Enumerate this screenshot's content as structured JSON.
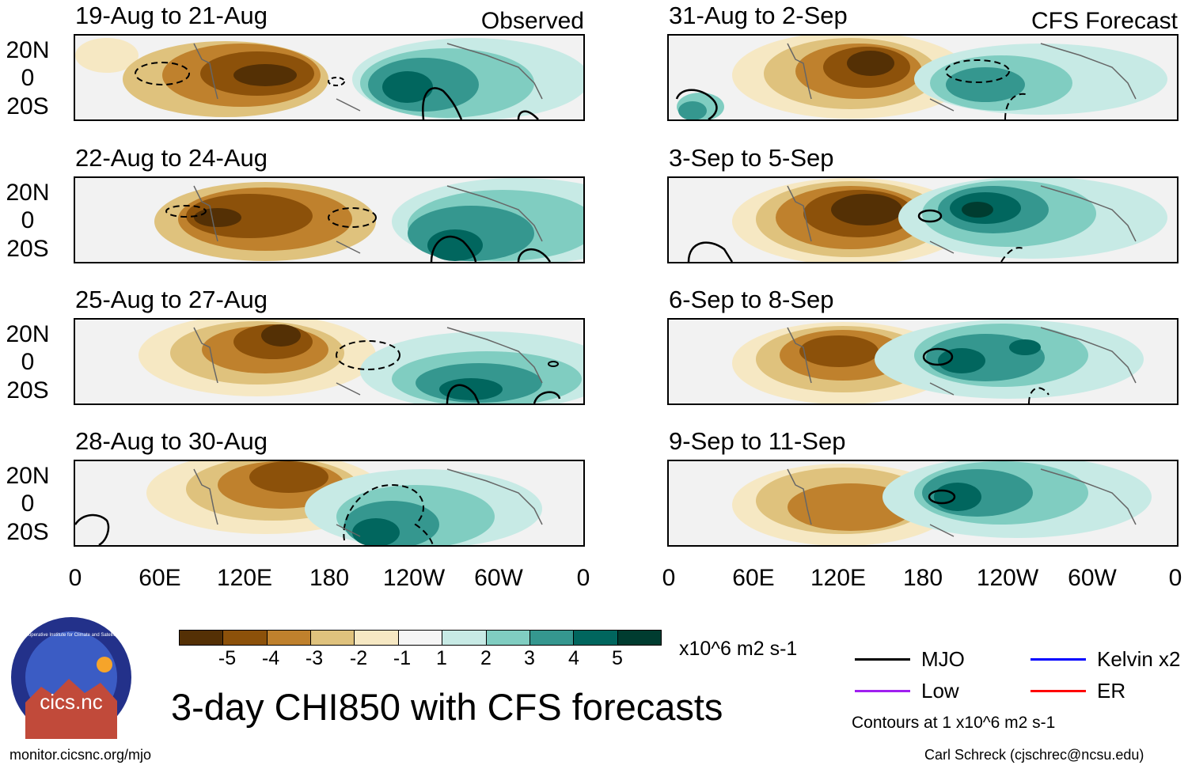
{
  "headers": {
    "observed": "Observed",
    "forecast": "CFS Forecast"
  },
  "observed_panels": [
    {
      "title": "19-Aug to 21-Aug"
    },
    {
      "title": "22-Aug to 24-Aug"
    },
    {
      "title": "25-Aug to 27-Aug"
    },
    {
      "title": "28-Aug to 30-Aug"
    }
  ],
  "forecast_panels": [
    {
      "title": "31-Aug to 2-Sep"
    },
    {
      "title": "3-Sep to 5-Sep"
    },
    {
      "title": "6-Sep to 8-Sep"
    },
    {
      "title": "9-Sep to 11-Sep"
    }
  ],
  "lat_labels": [
    "20N",
    "0",
    "20S"
  ],
  "lon_labels": [
    "0",
    "60E",
    "120E",
    "180",
    "120W",
    "60W",
    "0"
  ],
  "colorbar": {
    "labels": [
      "-5",
      "-4",
      "-3",
      "-2",
      "-1",
      "1",
      "2",
      "3",
      "4",
      "5"
    ],
    "colors": [
      "#543005",
      "#8c510a",
      "#bf812d",
      "#dfc27d",
      "#f6e8c3",
      "#f5f5f5",
      "#c7eae5",
      "#80cdc1",
      "#35978f",
      "#01665e",
      "#003c30"
    ],
    "units": "x10^6 m2 s-1"
  },
  "title": "3-day CHI850 with CFS forecasts",
  "legend": [
    {
      "label": "MJO",
      "color": "#000000"
    },
    {
      "label": "Kelvin x2",
      "color": "#0000ff"
    },
    {
      "label": "Low",
      "color": "#a020f0"
    },
    {
      "label": "ER",
      "color": "#ff0000"
    }
  ],
  "contour_note": "Contours at 1 x10^6 m2 s-1",
  "logo_text": "cics.nc",
  "logo_ring_text": "Cooperative Institute for Climate and Satellites",
  "footer": {
    "left": "monitor.cicsnc.org/mjo",
    "right": "Carl Schreck (cjschrec@ncsu.edu)"
  }
}
